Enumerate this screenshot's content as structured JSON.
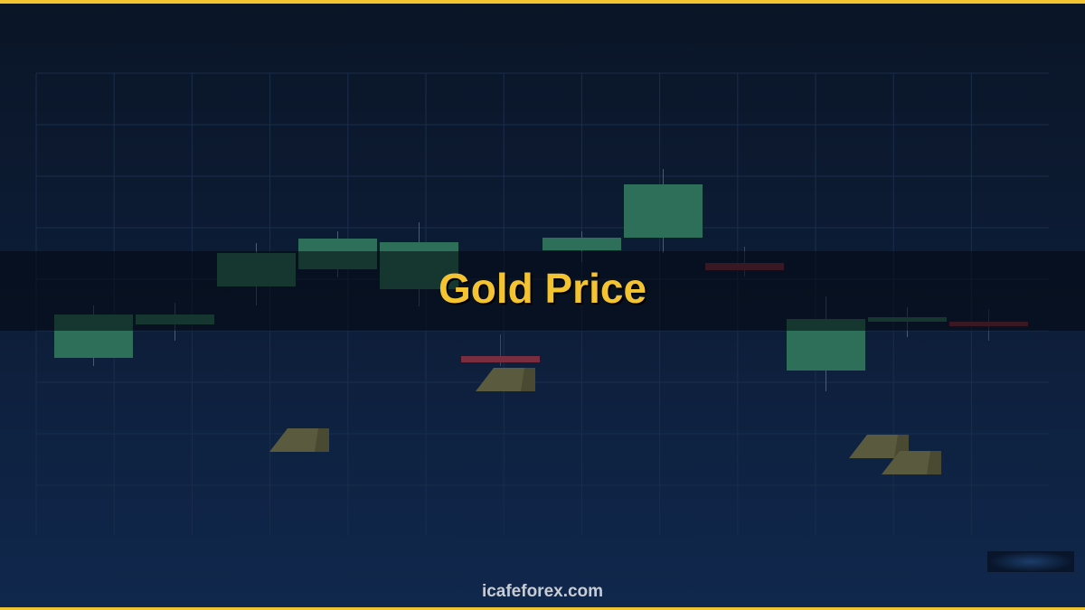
{
  "banner": {
    "title": "Gold Price",
    "site": "icafeforex.com"
  },
  "colors": {
    "accent": "#f4c430",
    "bullish": "#2e6f5a",
    "bearish": "#7a2d3e",
    "gold_bar": "#5a5a3e"
  }
}
